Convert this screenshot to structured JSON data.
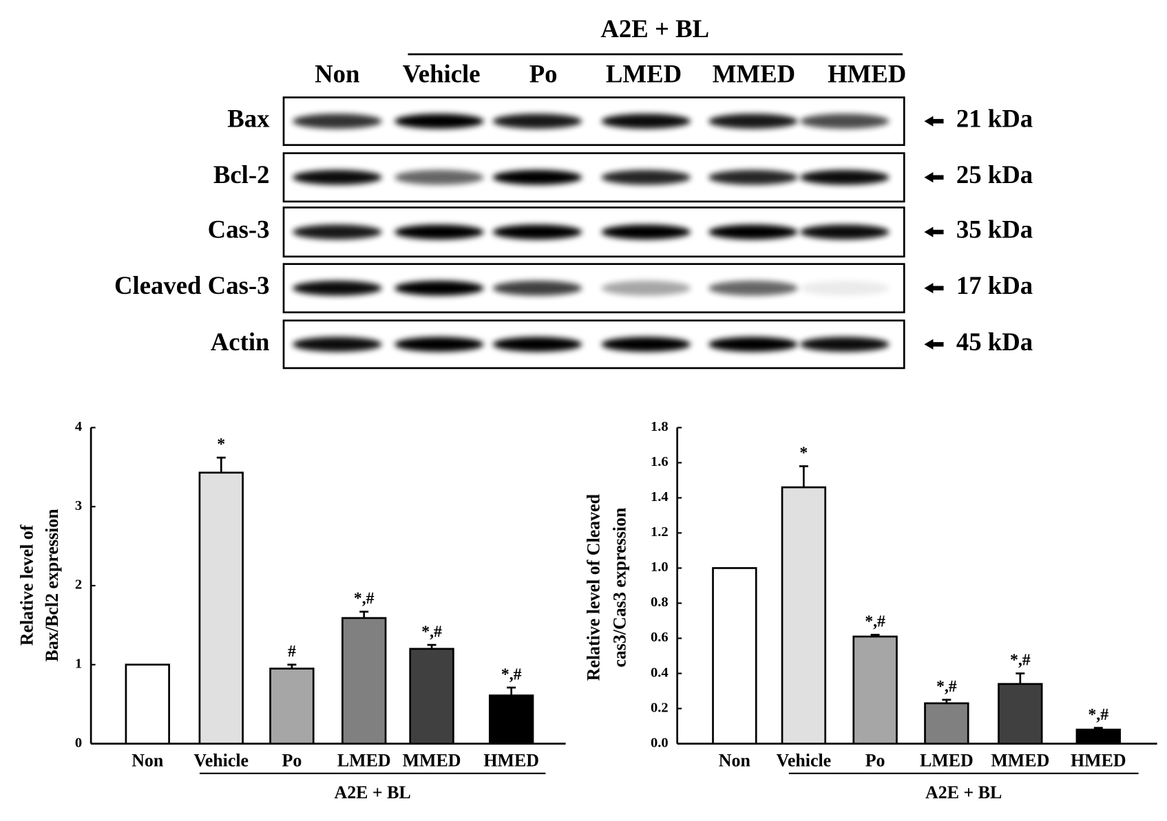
{
  "blot": {
    "group_label": "A2E + BL",
    "lanes": [
      "Non",
      "Vehicle",
      "Po",
      "LMED",
      "MMED",
      "HMED"
    ],
    "rows": [
      {
        "name": "Bax",
        "size": "21 kDa"
      },
      {
        "name": "Bcl-2",
        "size": "25 kDa"
      },
      {
        "name": "Cas-3",
        "size": "35 kDa"
      },
      {
        "name": "Cleaved Cas-3",
        "size": "17 kDa"
      },
      {
        "name": "Actin",
        "size": "45 kDa"
      }
    ]
  },
  "chart_data": [
    {
      "type": "bar",
      "y_label": [
        "Relative level of",
        "Bax/Bcl2 expression"
      ],
      "group_label": "A2E + BL",
      "categories": [
        "Non",
        "Vehicle",
        "Po",
        "LMED",
        "MMED",
        "HMED"
      ],
      "values": [
        1.0,
        3.43,
        0.95,
        1.59,
        1.2,
        0.61
      ],
      "errors": [
        0,
        0.19,
        0.05,
        0.08,
        0.05,
        0.1
      ],
      "annotations": [
        null,
        "*",
        "#",
        "*,#",
        "*,#",
        "*,#"
      ],
      "colors": [
        "#ffffff",
        "#e0e0e0",
        "#a6a6a6",
        "#808080",
        "#404040",
        "#000000"
      ],
      "ylim": [
        0,
        4
      ],
      "yticks": [
        0,
        1,
        2,
        3,
        4
      ]
    },
    {
      "type": "bar",
      "y_label": [
        "Relative level of  Cleaved",
        "cas3/Cas3 expression"
      ],
      "group_label": "A2E + BL",
      "categories": [
        "Non",
        "Vehicle",
        "Po",
        "LMED",
        "MMED",
        "HMED"
      ],
      "values": [
        1.0,
        1.46,
        0.61,
        0.23,
        0.34,
        0.08
      ],
      "errors": [
        0,
        0.12,
        0.01,
        0.02,
        0.06,
        0.01
      ],
      "annotations": [
        null,
        "*",
        "*,#",
        "*,#",
        "*,#",
        "*,#"
      ],
      "colors": [
        "#ffffff",
        "#e0e0e0",
        "#a6a6a6",
        "#808080",
        "#404040",
        "#000000"
      ],
      "ylim": [
        0,
        1.8
      ],
      "yticks": [
        {
          "value": 0,
          "label": "0.0"
        },
        0.2,
        0.4,
        0.6,
        0.8,
        {
          "value": 1,
          "label": "1.0"
        },
        1.2,
        1.4,
        1.6,
        1.8
      ]
    }
  ]
}
